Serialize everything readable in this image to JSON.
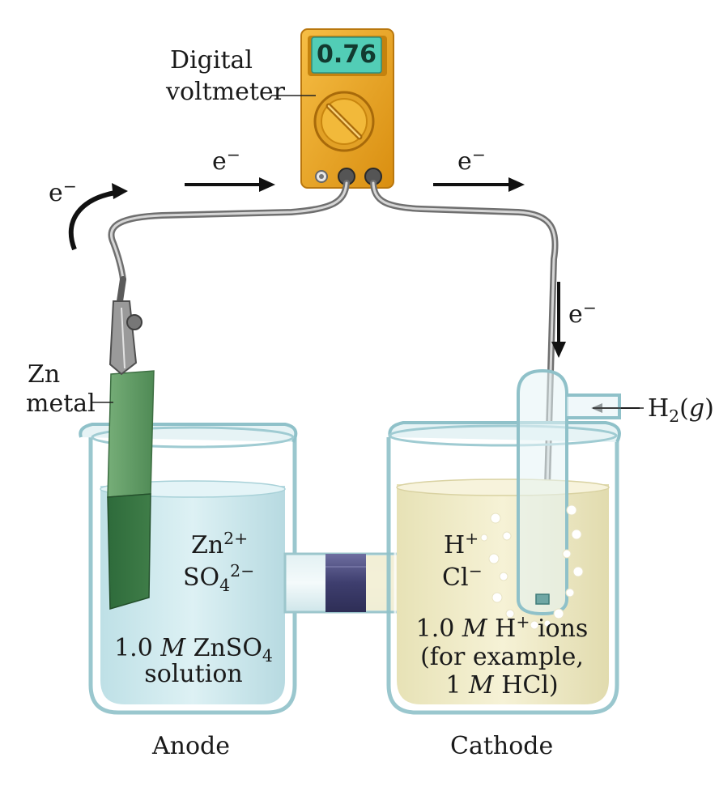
{
  "meter": {
    "reading": "0.76",
    "label_line1": "Digital",
    "label_line2": "voltmeter"
  },
  "electron": {
    "symbol": "e",
    "charge": "−"
  },
  "zinc": {
    "line1": "Zn",
    "line2": "metal"
  },
  "anode_ions": {
    "ion1": "Zn",
    "ion1_charge": "2+",
    "ion2_base": "SO",
    "ion2_sub": "4",
    "ion2_charge": "2−"
  },
  "anode_solution": {
    "line1_prefix": "1.0 ",
    "line1_M": "M",
    "line1_rest": " ZnSO",
    "line1_sub": "4",
    "line2": "solution"
  },
  "cathode_ions": {
    "ion1": "H",
    "ion1_charge": "+",
    "ion2": "Cl",
    "ion2_charge": "−"
  },
  "cathode_solution": {
    "line1_prefix": "1.0 ",
    "line1_M": "M",
    "line1_mid": " H",
    "line1_charge": "+",
    "line1_rest": " ions",
    "line2": "(for example,",
    "line3_prefix": "1 ",
    "line3_M": "M",
    "line3_rest": " HCl)"
  },
  "gas": {
    "base": "H",
    "sub": "2",
    "open": "(",
    "state": "g",
    "close": ")"
  },
  "electrodes": {
    "anode": "Anode",
    "cathode": "Cathode"
  },
  "colors": {
    "meter_body": "#E9A21F",
    "meter_dark": "#B9770E",
    "meter_screen": "#52CDB6",
    "glass": "#DCEFF2",
    "glass_edge": "#9CC6CC",
    "anode_solution": "#CFE9EE",
    "cathode_solution": "#F2EDCB",
    "zinc_strip": "#5E9A63",
    "salt_bridge_band": "#4E4E80"
  },
  "icons": {
    "arrow": "right-arrow-icon",
    "curved_arrow": "curved-arrow-icon",
    "clip": "alligator-clip-icon"
  }
}
